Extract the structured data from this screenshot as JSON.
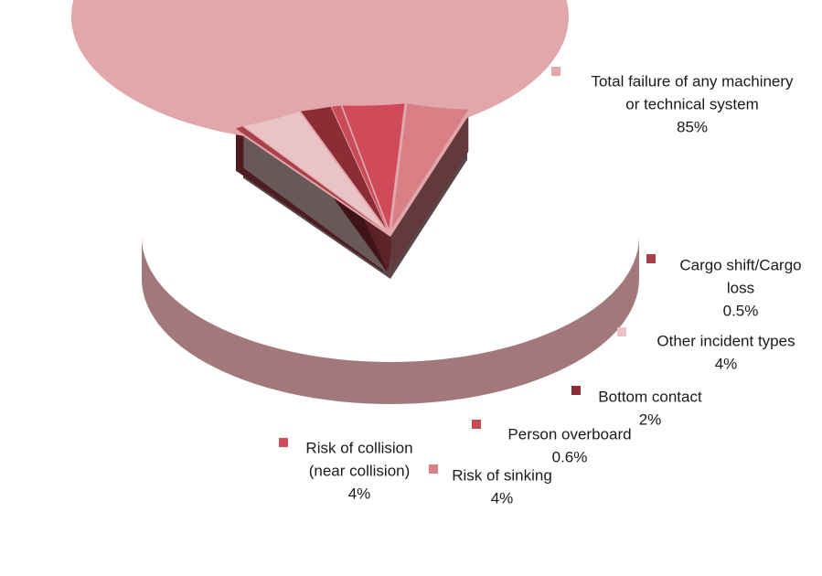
{
  "chart_data": {
    "type": "pie",
    "style": "3d-exploded",
    "slices": [
      {
        "label": "Total failure of any machinery or technical system",
        "value": 85,
        "value_label": "85%",
        "color": "#e1a7ab",
        "label_lines": [
          "Total failure of any machinery",
          "or technical system"
        ]
      },
      {
        "label": "Cargo shift/Cargo loss",
        "value": 0.5,
        "value_label": "0.5%",
        "color": "#a9404a",
        "label_lines": [
          "Cargo shift/Cargo",
          "loss"
        ]
      },
      {
        "label": "Other incident types",
        "value": 4,
        "value_label": "4%",
        "color": "#eac3c6",
        "label_lines": [
          "Other incident types"
        ]
      },
      {
        "label": "Bottom contact",
        "value": 2,
        "value_label": "2%",
        "color": "#8c2c35",
        "label_lines": [
          "Bottom contact"
        ]
      },
      {
        "label": "Person overboard",
        "value": 0.6,
        "value_label": "0.6%",
        "color": "#c94b58",
        "label_lines": [
          "Person overboard"
        ]
      },
      {
        "label": "Risk of collision (near collision)",
        "value": 4,
        "value_label": "4%",
        "color": "#d04b5a",
        "label_lines": [
          "Risk of collision",
          "(near collision)"
        ]
      },
      {
        "label": "Risk of sinking",
        "value": 4,
        "value_label": "4%",
        "color": "#d98086",
        "label_lines": [
          "Risk of sinking"
        ]
      }
    ]
  }
}
